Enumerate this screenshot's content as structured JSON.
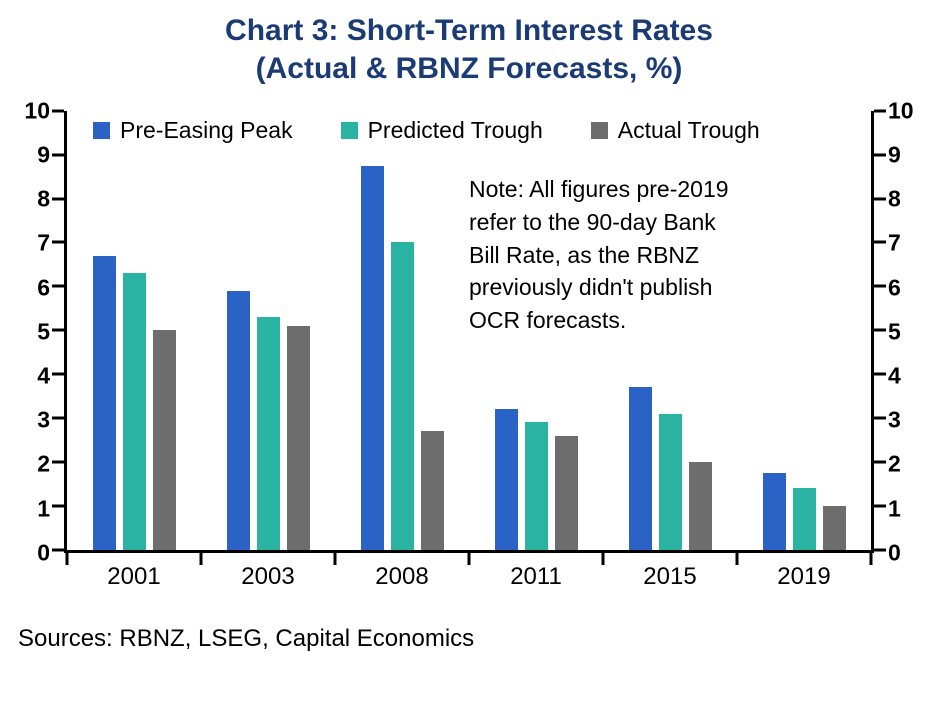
{
  "title": {
    "line1": "Chart 3: Short-Term Interest Rates",
    "line2": "(Actual & RBNZ Forecasts, %)"
  },
  "chart_data": {
    "type": "bar",
    "categories": [
      "2001",
      "2003",
      "2008",
      "2011",
      "2015",
      "2019"
    ],
    "series": [
      {
        "name": "Pre-Easing Peak",
        "color": "#2b62c6",
        "values": [
          6.7,
          5.9,
          8.75,
          3.2,
          3.7,
          1.75
        ]
      },
      {
        "name": "Predicted Trough",
        "color": "#2ab3a3",
        "values": [
          6.3,
          5.3,
          7.0,
          2.9,
          3.1,
          1.4
        ]
      },
      {
        "name": "Actual Trough",
        "color": "#6d6d6d",
        "values": [
          5.0,
          5.1,
          2.7,
          2.6,
          2.0,
          1.0
        ]
      }
    ],
    "ylim": [
      0,
      10
    ],
    "ytick_step": 1,
    "grid": false,
    "legend_position": "top-inside",
    "title": "Chart 3: Short-Term Interest Rates (Actual & RBNZ Forecasts, %)",
    "xlabel": "",
    "ylabel": ""
  },
  "note": "Note: All figures pre-2019\nrefer to the 90-day Bank\nBill Rate, as the RBNZ\npreviously didn't publish\nOCR forecasts.",
  "sources": "Sources: RBNZ, LSEG, Capital Economics",
  "colors": {
    "title": "#1b3b76",
    "axis": "#000000"
  }
}
